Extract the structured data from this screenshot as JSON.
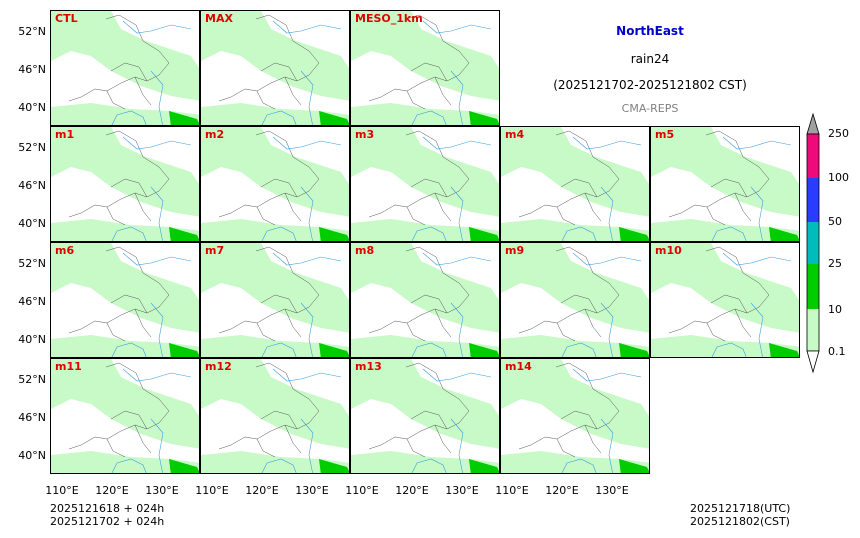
{
  "header": {
    "region": "NorthEast",
    "variable": "rain24",
    "period": "(2025121702-2025121802 CST)",
    "system": "CMA-REPS"
  },
  "panels": [
    {
      "label": "CTL",
      "row": 0,
      "col": 0
    },
    {
      "label": "MAX",
      "row": 0,
      "col": 1
    },
    {
      "label": "MESO_1km",
      "row": 0,
      "col": 2
    },
    {
      "label": "m1",
      "row": 1,
      "col": 0
    },
    {
      "label": "m2",
      "row": 1,
      "col": 1
    },
    {
      "label": "m3",
      "row": 1,
      "col": 2
    },
    {
      "label": "m4",
      "row": 1,
      "col": 3
    },
    {
      "label": "m5",
      "row": 1,
      "col": 4
    },
    {
      "label": "m6",
      "row": 2,
      "col": 0
    },
    {
      "label": "m7",
      "row": 2,
      "col": 1
    },
    {
      "label": "m8",
      "row": 2,
      "col": 2
    },
    {
      "label": "m9",
      "row": 2,
      "col": 3
    },
    {
      "label": "m10",
      "row": 2,
      "col": 4
    },
    {
      "label": "m11",
      "row": 3,
      "col": 0
    },
    {
      "label": "m12",
      "row": 3,
      "col": 1
    },
    {
      "label": "m13",
      "row": 3,
      "col": 2
    },
    {
      "label": "m14",
      "row": 3,
      "col": 3
    }
  ],
  "lat_ticks": [
    "52°N",
    "46°N",
    "40°N"
  ],
  "lon_ticks": [
    "110°E",
    "120°E",
    "130°E"
  ],
  "colorbar": {
    "levels": [
      "0.1",
      "10",
      "25",
      "50",
      "100",
      "250"
    ],
    "colors": [
      "#c8fac8",
      "#00cc00",
      "#00bcbc",
      "#2a3cff",
      "#ee0a7a",
      "#a0a0a0"
    ]
  },
  "footer": {
    "init_utc": "2025121618  +  024h",
    "init_cst": "2025121702  +  024h",
    "valid_utc": "2025121718(UTC)",
    "valid_cst": "2025121802(CST)"
  }
}
